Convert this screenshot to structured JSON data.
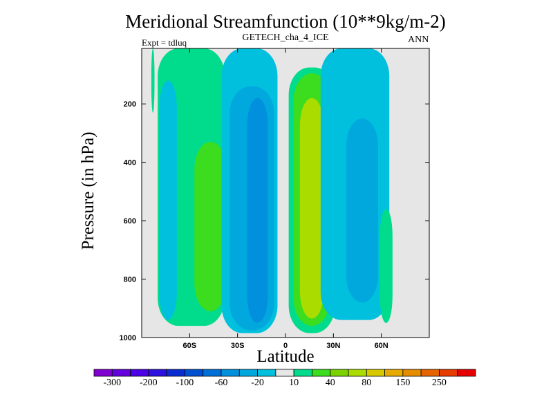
{
  "chart_data": {
    "type": "heatmap",
    "subtype": "filled-contour",
    "title": "Meridional Streamfunction (10**9kg/m-2)",
    "subtitle": "GETECH_cha_4_ICE",
    "experiment_label": "Expt = tdluq",
    "season": "ANN",
    "xlabel": "Latitude",
    "ylabel": "Pressure (in hPa)",
    "x_ticks": [
      "60S",
      "30S",
      "0",
      "30N",
      "60N"
    ],
    "x_tick_values": [
      -60,
      -30,
      0,
      30,
      60
    ],
    "xlim": [
      -90,
      90
    ],
    "y_ticks": [
      200,
      400,
      600,
      800,
      1000
    ],
    "ylim": [
      1000,
      10
    ],
    "y_reversed": true,
    "background_color": "#e6e6e6",
    "colorbar": {
      "labels": [
        "-300",
        "-200",
        "-100",
        "-60",
        "-20",
        "10",
        "40",
        "80",
        "150",
        "250"
      ],
      "colors": [
        "#8000d0",
        "#6400dc",
        "#4b00e6",
        "#2c10dd",
        "#0a2dd2",
        "#0050d2",
        "#0070d8",
        "#0090de",
        "#00a8dd",
        "#00c0dd",
        "#e6e6e6",
        "#00dc8c",
        "#3cdc1e",
        "#7ad200",
        "#aadc00",
        "#d8c800",
        "#e6aa00",
        "#e68c00",
        "#e66400",
        "#e63c00",
        "#e60000"
      ]
    },
    "regions": [
      {
        "level": "10",
        "color": "#00dc8c",
        "lat_range": [
          -84,
          -82
        ],
        "p_range": [
          10,
          230
        ]
      },
      {
        "level": "10",
        "color": "#00dc8c",
        "lat_range": [
          -80,
          -38
        ],
        "p_range": [
          10,
          960
        ]
      },
      {
        "level": "40",
        "color": "#3cdc1e",
        "lat_range": [
          -57,
          -37
        ],
        "p_range": [
          330,
          910
        ]
      },
      {
        "level": "-20",
        "color": "#00c0dd",
        "lat_range": [
          -79,
          -68
        ],
        "p_range": [
          120,
          940
        ]
      },
      {
        "level": "-20",
        "color": "#00c0dd",
        "lat_range": [
          -40,
          -5
        ],
        "p_range": [
          10,
          985
        ]
      },
      {
        "level": "-20",
        "color": "#00c0dd",
        "lat_range": [
          -17,
          -15
        ],
        "p_range": [
          10,
          60
        ]
      },
      {
        "level": "-60",
        "color": "#00a8dd",
        "lat_range": [
          -35,
          -7
        ],
        "p_range": [
          140,
          975
        ]
      },
      {
        "level": "-100",
        "color": "#0090de",
        "lat_range": [
          -24,
          -11
        ],
        "p_range": [
          180,
          950
        ]
      },
      {
        "level": "10",
        "color": "#00dc8c",
        "lat_range": [
          2,
          31
        ],
        "p_range": [
          75,
          985
        ]
      },
      {
        "level": "40",
        "color": "#3cdc1e",
        "lat_range": [
          5,
          28
        ],
        "p_range": [
          95,
          960
        ]
      },
      {
        "level": "80",
        "color": "#aadc00",
        "lat_range": [
          9,
          24
        ],
        "p_range": [
          180,
          935
        ]
      },
      {
        "level": "-20",
        "color": "#00c0dd",
        "lat_range": [
          22,
          65
        ],
        "p_range": [
          10,
          940
        ]
      },
      {
        "level": "10",
        "color": "#00dc8c",
        "lat_range": [
          59,
          67
        ],
        "p_range": [
          560,
          950
        ]
      },
      {
        "level": "-60",
        "color": "#00a8dd",
        "lat_range": [
          38,
          58
        ],
        "p_range": [
          250,
          880
        ]
      }
    ]
  }
}
